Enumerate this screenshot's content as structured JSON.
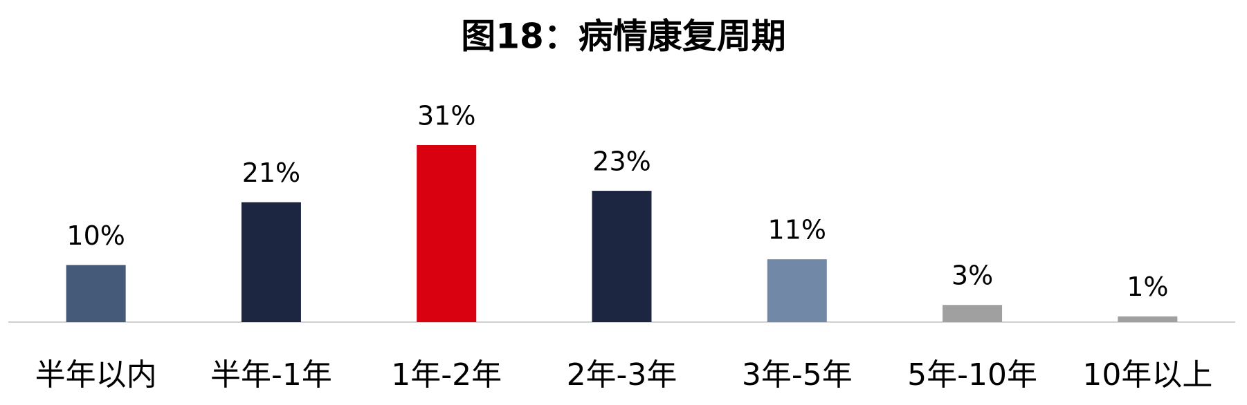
{
  "chart_data": {
    "type": "bar",
    "title": "图18：病情康复周期",
    "categories": [
      "半年以内",
      "半年-1年",
      "1年-2年",
      "2年-3年",
      "3年-5年",
      "5年-10年",
      "10年以上"
    ],
    "values": [
      10,
      21,
      31,
      23,
      11,
      3,
      1
    ],
    "value_labels": [
      "10%",
      "21%",
      "31%",
      "23%",
      "11%",
      "3%",
      "1%"
    ],
    "colors": [
      "#455a78",
      "#1c2640",
      "#d9000f",
      "#1c2640",
      "#7189a6",
      "#a0a0a0",
      "#a0a0a0"
    ]
  }
}
